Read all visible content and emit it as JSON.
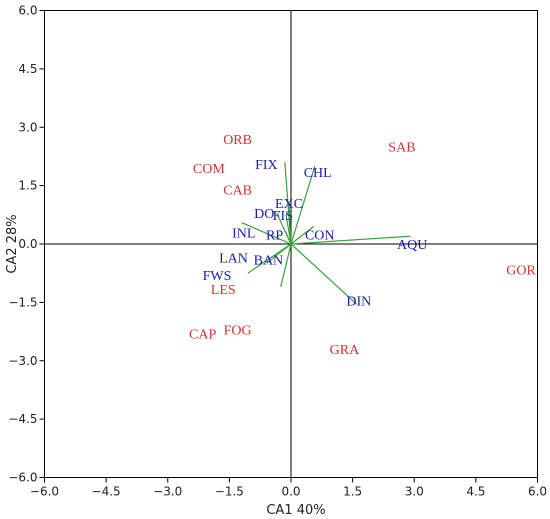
{
  "chart_data": {
    "type": "scatter",
    "title": "",
    "xlabel": "CA1 40%",
    "ylabel": "CA2 28%",
    "xlim": [
      -6.0,
      6.0
    ],
    "ylim": [
      -6.0,
      6.0
    ],
    "xticks": [
      "−6.0",
      "−4.5",
      "−3.0",
      "−1.5",
      "0.0",
      "1.5",
      "3.0",
      "4.5",
      "6.0"
    ],
    "yticks": [
      "−6.0",
      "−4.5",
      "−3.0",
      "−1.5",
      "0.0",
      "1.5",
      "3.0",
      "4.5",
      "6.0"
    ],
    "grid": false,
    "colors": {
      "sites": "#cc3333",
      "variables": "#1a1aaa",
      "vectors": "#3aa03a"
    },
    "sites": [
      {
        "name": "ORB",
        "x": -1.3,
        "y": 2.7
      },
      {
        "name": "SAB",
        "x": 2.7,
        "y": 2.5
      },
      {
        "name": "COM",
        "x": -2.0,
        "y": 1.95
      },
      {
        "name": "CAB",
        "x": -1.3,
        "y": 1.4
      },
      {
        "name": "GOR",
        "x": 5.6,
        "y": -0.65
      },
      {
        "name": "LES",
        "x": -1.65,
        "y": -1.15
      },
      {
        "name": "CAP",
        "x": -2.15,
        "y": -2.3
      },
      {
        "name": "FOG",
        "x": -1.3,
        "y": -2.2
      },
      {
        "name": "GRA",
        "x": 1.3,
        "y": -2.7
      }
    ],
    "variables": [
      {
        "name": "FIX",
        "x": -0.6,
        "y": 2.05,
        "vx": -0.15,
        "vy": 2.1
      },
      {
        "name": "CHL",
        "x": 0.65,
        "y": 1.85,
        "vx": 0.58,
        "vy": 2.0
      },
      {
        "name": "EXC",
        "x": -0.05,
        "y": 1.05,
        "vx": -0.05,
        "vy": 1.05
      },
      {
        "name": "DO",
        "x": -0.65,
        "y": 0.8,
        "vx": -0.35,
        "vy": 0.8
      },
      {
        "name": "FIS",
        "x": -0.2,
        "y": 0.75,
        "vx": -0.12,
        "vy": 0.75
      },
      {
        "name": "INL",
        "x": -1.15,
        "y": 0.3,
        "vx": -1.2,
        "vy": 0.55
      },
      {
        "name": "RP",
        "x": -0.4,
        "y": 0.25,
        "vx": -0.15,
        "vy": 0.35
      },
      {
        "name": "CON",
        "x": 0.7,
        "y": 0.25,
        "vx": 0.55,
        "vy": 0.45
      },
      {
        "name": "AQU",
        "x": 2.95,
        "y": 0.0,
        "vx": 2.9,
        "vy": 0.2
      },
      {
        "name": "LAN",
        "x": -1.4,
        "y": -0.35,
        "vx": -0.6,
        "vy": -0.5
      },
      {
        "name": "BAN",
        "x": -0.55,
        "y": -0.4,
        "vx": -0.25,
        "vy": -1.1
      },
      {
        "name": "FWS",
        "x": -1.8,
        "y": -0.8,
        "vx": -1.05,
        "vy": -0.75
      },
      {
        "name": "DIN",
        "x": 1.65,
        "y": -1.45,
        "vx": 1.6,
        "vy": -1.55
      }
    ]
  }
}
